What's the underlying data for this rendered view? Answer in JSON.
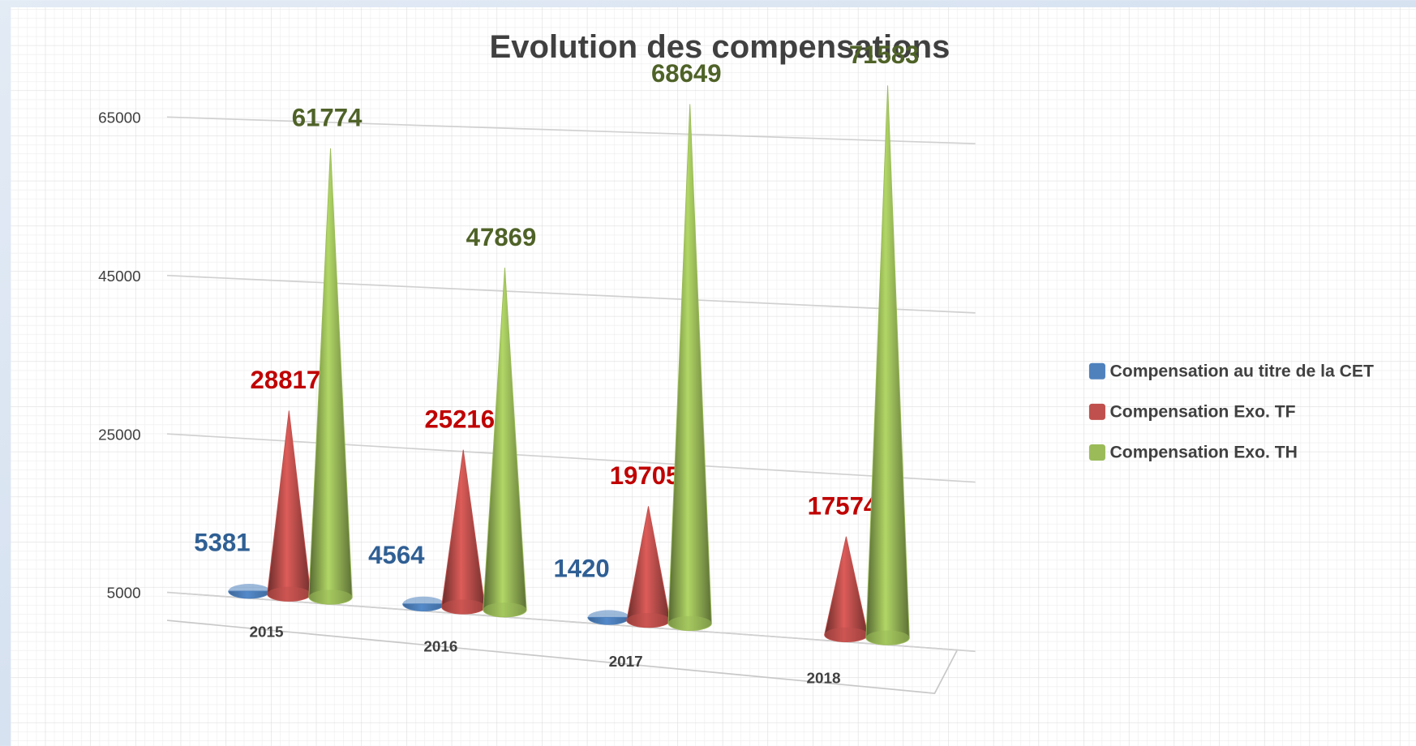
{
  "chart_data": {
    "type": "cone3d",
    "title": "Evolution des compensations",
    "categories": [
      "2015",
      "2016",
      "2017",
      "2018"
    ],
    "series": [
      {
        "name": "Compensation au titre de la CET",
        "color": "#4f81bd",
        "label_color": "#2f5f94",
        "values": [
          5381,
          4564,
          1420,
          null
        ]
      },
      {
        "name": "Compensation Exo. TF",
        "color": "#c0504d",
        "label_color": "#c00000",
        "values": [
          28817,
          25216,
          19705,
          17574
        ]
      },
      {
        "name": "Compensation Exo. TH",
        "color": "#9bbb59",
        "label_color": "#4f6228",
        "values": [
          61774,
          47869,
          68649,
          71583
        ]
      }
    ],
    "ylim": [
      5000,
      65000
    ],
    "yticks": [
      5000,
      25000,
      45000,
      65000
    ],
    "grid": true,
    "legend": "right"
  }
}
